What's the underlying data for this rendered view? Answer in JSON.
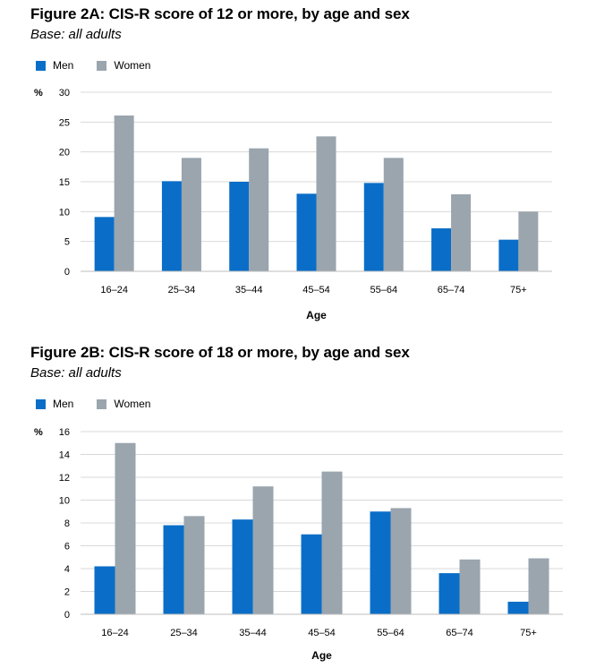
{
  "colors": {
    "men": "#0a6ec8",
    "women": "#9aa5ae",
    "grid": "#d8d8d8"
  },
  "chart_data": [
    {
      "type": "bar",
      "title": "Figure 2A: CIS-R score of 12 or more, by age and sex",
      "subtitle": "Base: all adults",
      "ylabel": "%",
      "xlabel": "Age",
      "categories": [
        "16–24",
        "25–34",
        "35–44",
        "45–54",
        "55–64",
        "65–74",
        "75+"
      ],
      "series": [
        {
          "name": "Men",
          "values": [
            9.1,
            15.1,
            15.0,
            13.0,
            14.8,
            7.2,
            5.3
          ]
        },
        {
          "name": "Women",
          "values": [
            26.1,
            19.0,
            20.6,
            22.6,
            19.0,
            12.9,
            10.0
          ]
        }
      ],
      "ylim": [
        0,
        30
      ],
      "yticks": [
        0,
        5,
        10,
        15,
        20,
        25,
        30
      ],
      "grid": true,
      "legend": "top-left"
    },
    {
      "type": "bar",
      "title": "Figure 2B: CIS-R score of 18 or more, by age and sex",
      "subtitle": "Base: all adults",
      "ylabel": "%",
      "xlabel": "Age",
      "categories": [
        "16–24",
        "25–34",
        "35–44",
        "45–54",
        "55–64",
        "65–74",
        "75+"
      ],
      "series": [
        {
          "name": "Men",
          "values": [
            4.2,
            7.8,
            8.3,
            7.0,
            9.0,
            3.6,
            1.1
          ]
        },
        {
          "name": "Women",
          "values": [
            15.0,
            8.6,
            11.2,
            12.5,
            9.3,
            4.8,
            4.9
          ]
        }
      ],
      "ylim": [
        0,
        16
      ],
      "yticks": [
        0,
        2,
        4,
        6,
        8,
        10,
        12,
        14,
        16
      ],
      "grid": true,
      "legend": "top-left"
    }
  ]
}
